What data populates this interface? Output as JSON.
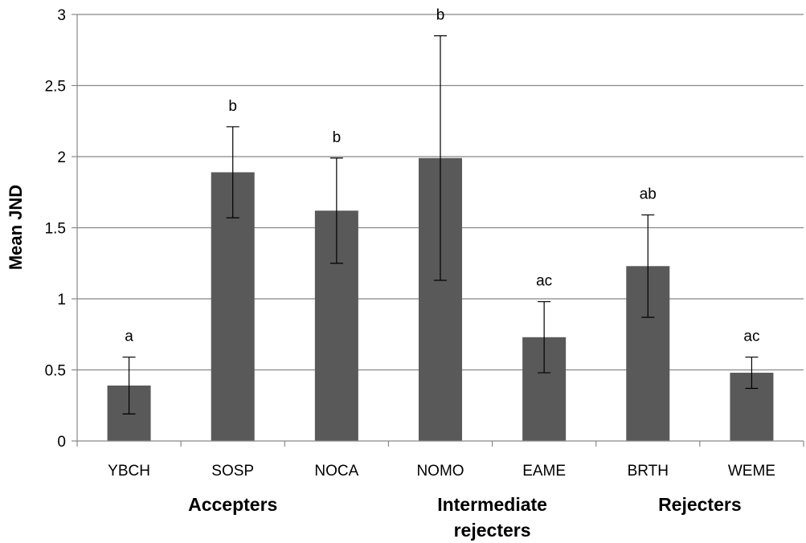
{
  "chart_data": {
    "type": "bar",
    "title": "",
    "xlabel": "",
    "ylabel": "Mean JND",
    "ylim": [
      0,
      3
    ],
    "yticks": [
      "0",
      "0.5",
      "1",
      "1.5",
      "2",
      "2.5",
      "3"
    ],
    "grid": true,
    "categories": [
      "YBCH",
      "SOSP",
      "NOCA",
      "NOMO",
      "EAME",
      "BRTH",
      "WEME"
    ],
    "values": [
      0.39,
      1.89,
      1.62,
      1.99,
      0.73,
      1.23,
      0.48
    ],
    "error_low": [
      0.19,
      1.57,
      1.25,
      1.13,
      0.48,
      0.87,
      0.37
    ],
    "error_high": [
      0.59,
      2.21,
      1.99,
      2.85,
      0.98,
      1.59,
      0.59
    ],
    "significance_labels": [
      "a",
      "b",
      "b",
      "b",
      "ac",
      "ab",
      "ac"
    ],
    "groups": [
      {
        "label_lines": [
          "Accepters"
        ],
        "categories": [
          "YBCH",
          "SOSP",
          "NOCA"
        ]
      },
      {
        "label_lines": [
          "Intermediate",
          "rejecters"
        ],
        "categories": [
          "NOMO",
          "EAME"
        ]
      },
      {
        "label_lines": [
          "Rejecters"
        ],
        "categories": [
          "BRTH",
          "WEME"
        ]
      }
    ],
    "colors": {
      "bar": "#595959",
      "grid": "#888888",
      "axis": "#888888",
      "error": "#000000"
    }
  }
}
